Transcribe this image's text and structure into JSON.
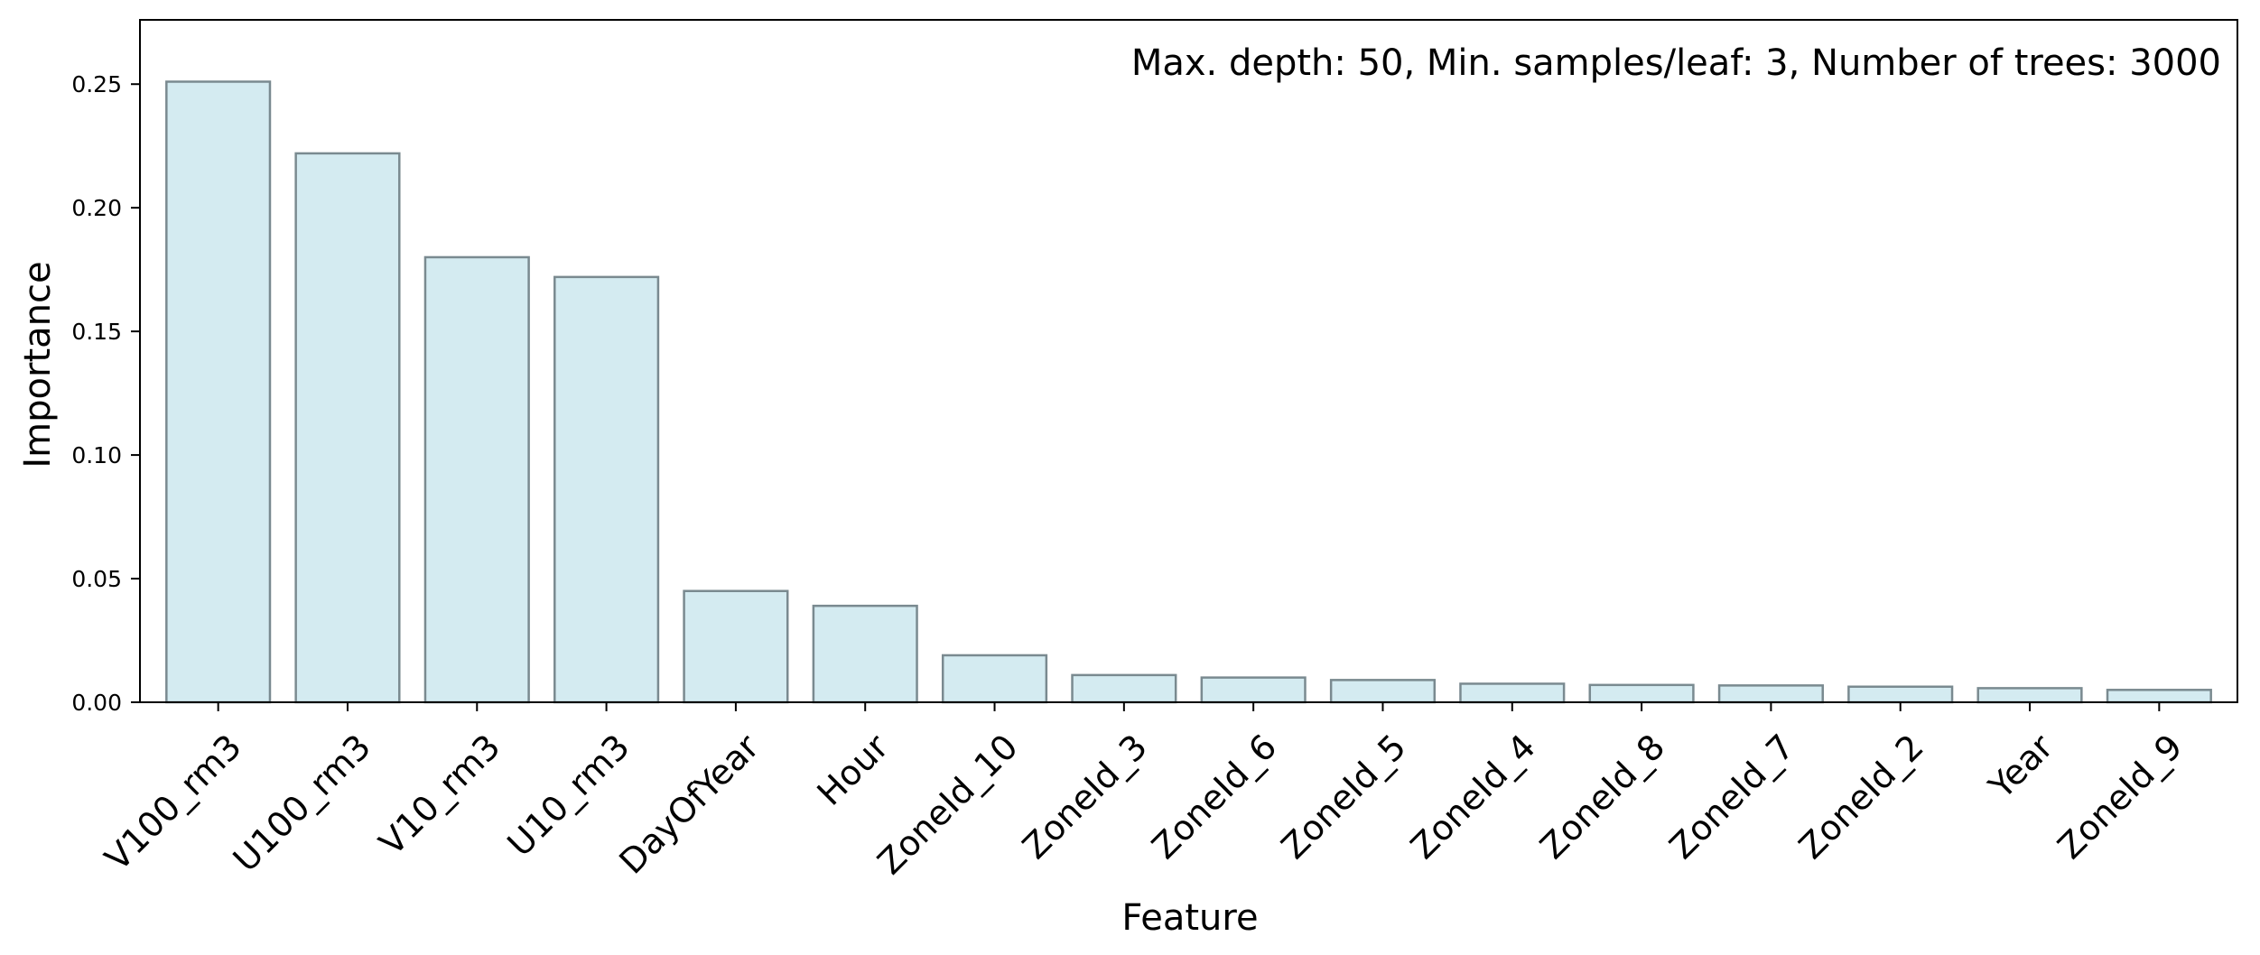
{
  "chart_data": {
    "type": "bar",
    "title": "",
    "annotation": "Max. depth: 50, Min. samples/leaf: 3, Number of trees: 3000",
    "xlabel": "Feature",
    "ylabel": "Importance",
    "categories": [
      "V100_rm3",
      "U100_rm3",
      "V10_rm3",
      "U10_rm3",
      "DayOfYear",
      "Hour",
      "ZoneId_10",
      "ZoneId_3",
      "ZoneId_6",
      "ZoneId_5",
      "ZoneId_4",
      "ZoneId_8",
      "ZoneId_7",
      "ZoneId_2",
      "Year",
      "ZoneId_9"
    ],
    "values": [
      0.251,
      0.222,
      0.18,
      0.172,
      0.045,
      0.039,
      0.019,
      0.011,
      0.01,
      0.009,
      0.0075,
      0.007,
      0.0068,
      0.0063,
      0.0057,
      0.005
    ],
    "ylim": [
      0,
      0.276
    ],
    "yticks": [
      "0.00",
      "0.05",
      "0.10",
      "0.15",
      "0.20",
      "0.25"
    ],
    "grid": false,
    "colors": {
      "bar_fill": "#d4ebf1",
      "bar_edge": "#7a8a90",
      "axis": "#000000"
    }
  }
}
